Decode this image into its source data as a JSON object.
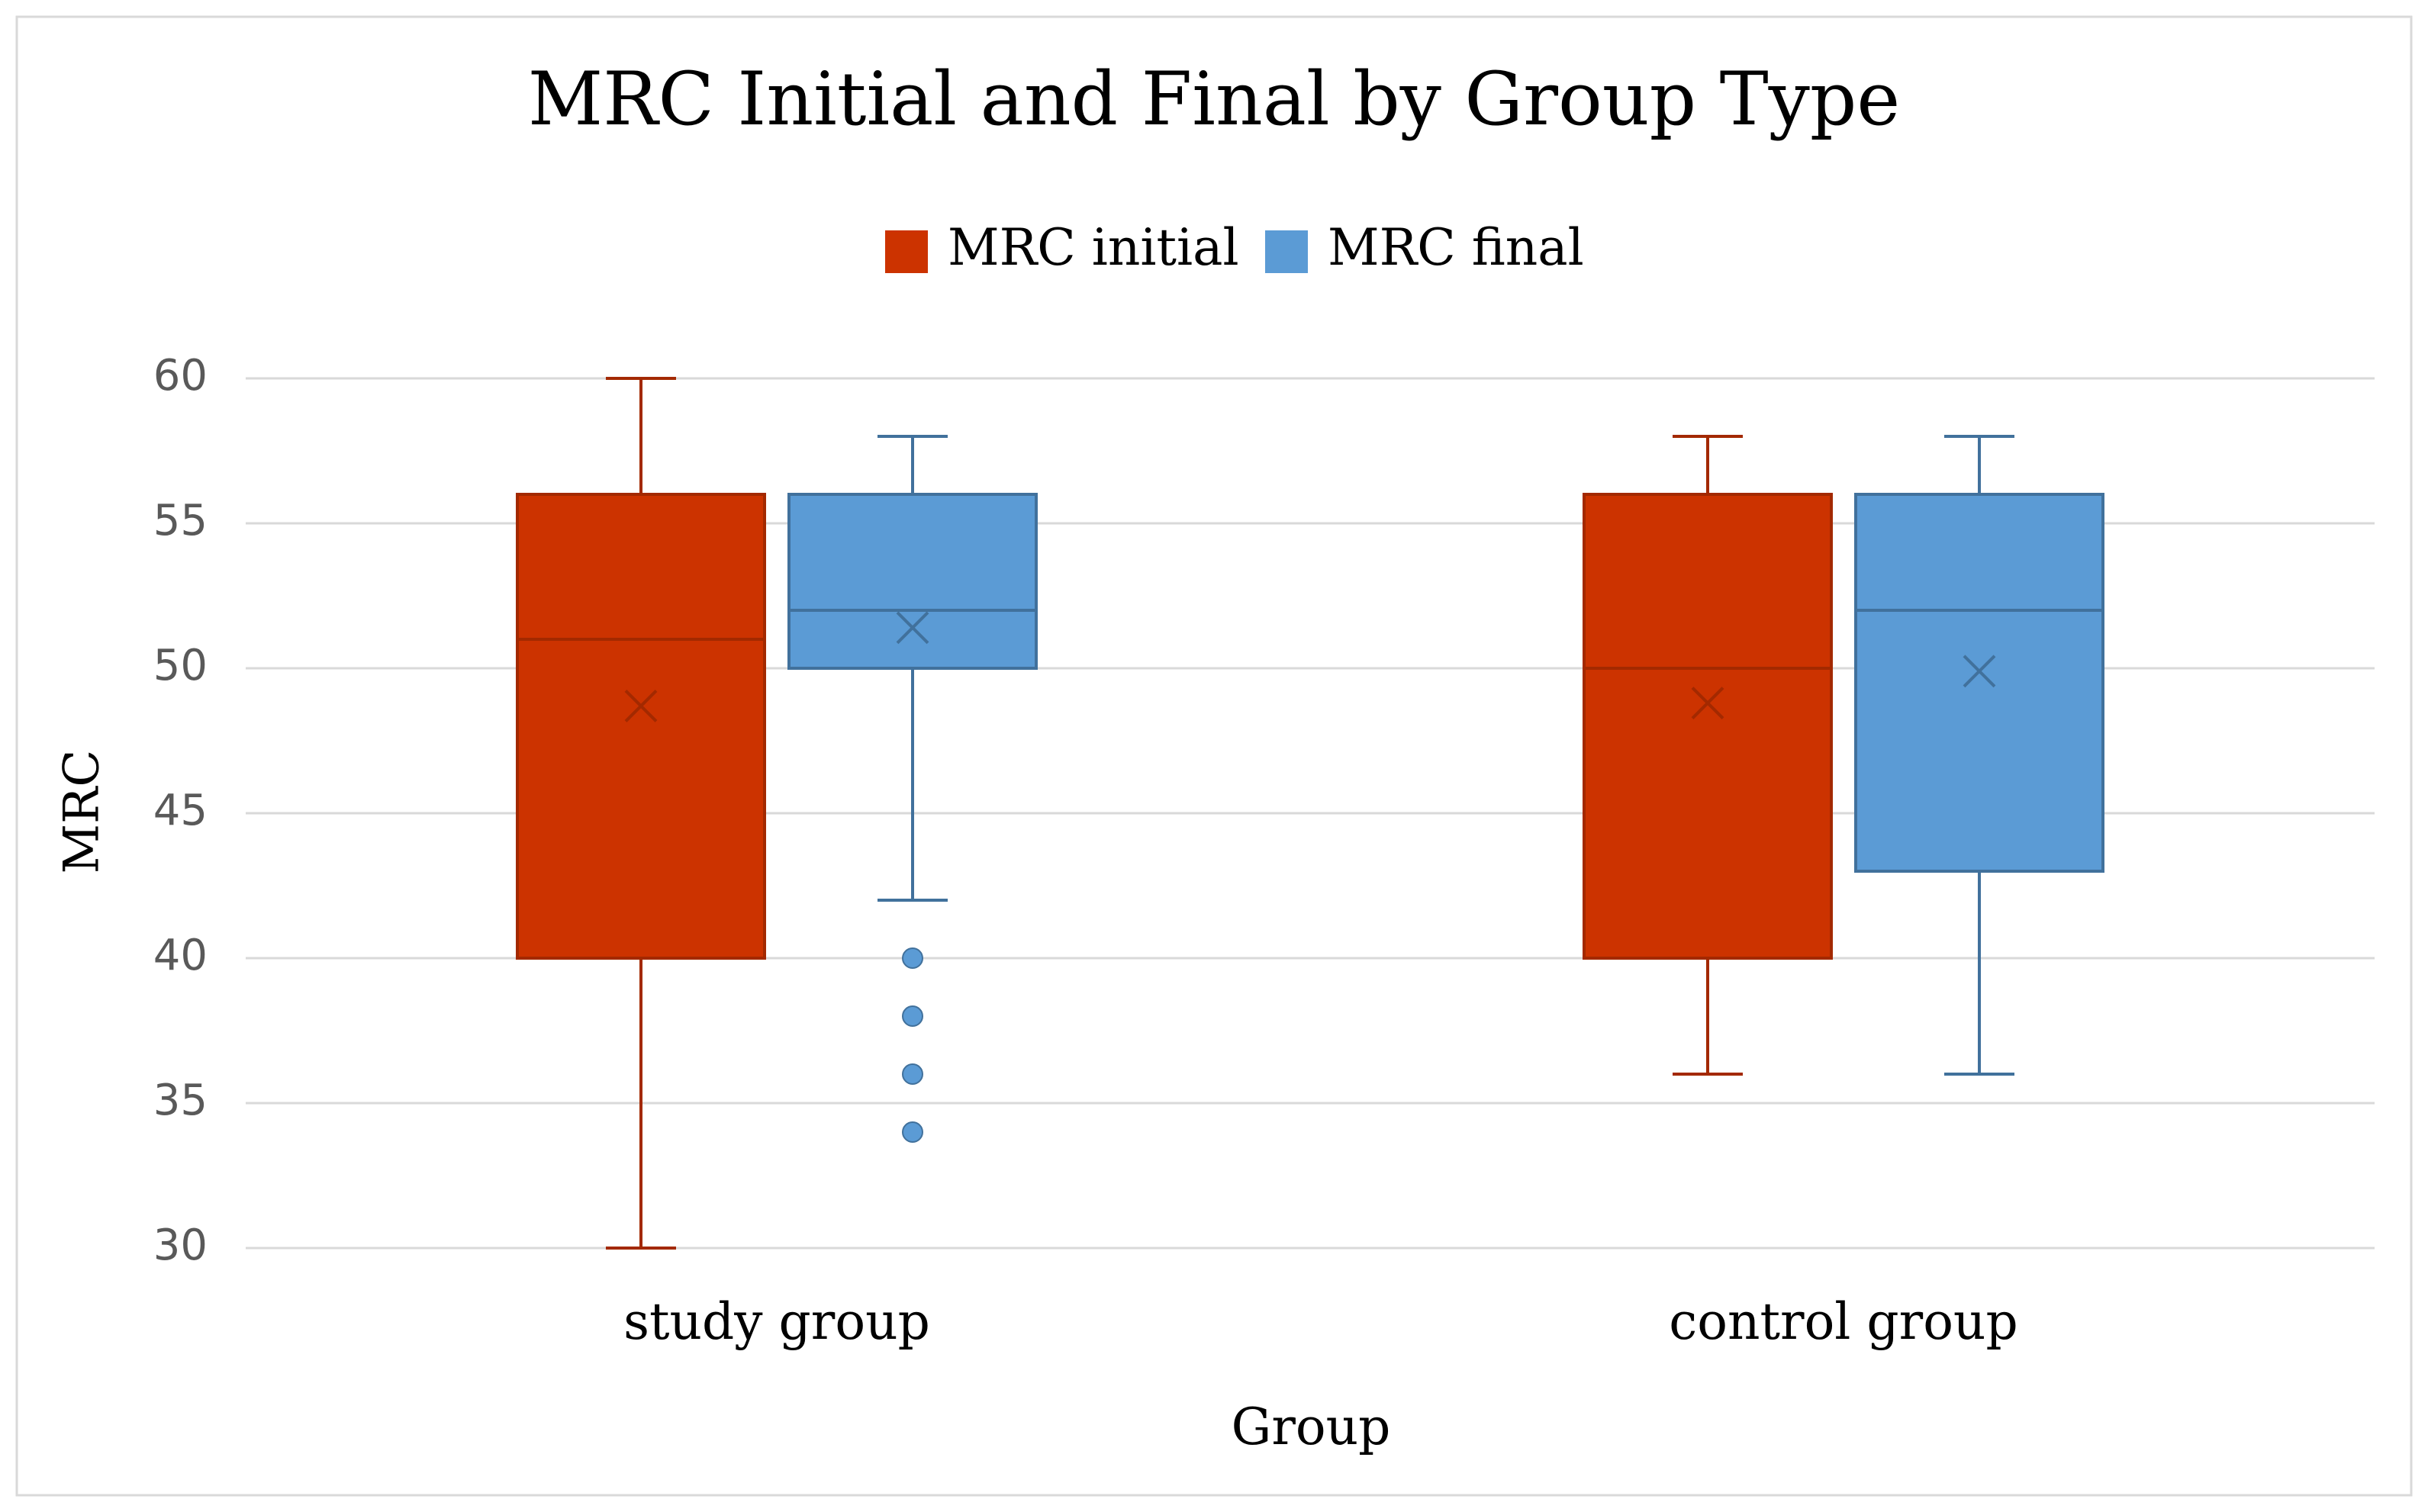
{
  "chart_data": {
    "type": "box",
    "title": "MRC Initial and Final by Group Type",
    "xlabel": "Group",
    "ylabel": "MRC",
    "ylim": [
      30,
      60
    ],
    "ytick_step": 5,
    "grid": true,
    "legend_position": "top-center",
    "categories": [
      "study group",
      "control group"
    ],
    "series": [
      {
        "name": "MRC initial",
        "color": "#CC3300",
        "line_color": "#A32900",
        "boxes": [
          {
            "category": "study group",
            "min": 30,
            "q1": 40,
            "median": 51,
            "q3": 56,
            "max": 60,
            "mean": 48.7,
            "outliers": []
          },
          {
            "category": "control group",
            "min": 36,
            "q1": 40,
            "median": 50,
            "q3": 56,
            "max": 58,
            "mean": 48.8,
            "outliers": []
          }
        ]
      },
      {
        "name": "MRC final",
        "color": "#5B9BD5",
        "line_color": "#41719C",
        "boxes": [
          {
            "category": "study group",
            "min": 42,
            "q1": 50,
            "median": 52,
            "q3": 56,
            "max": 58,
            "mean": 51.4,
            "outliers": [
              40,
              38,
              36,
              34
            ]
          },
          {
            "category": "control group",
            "min": 36,
            "q1": 43,
            "median": 52,
            "q3": 56,
            "max": 58,
            "mean": 49.9,
            "outliers": []
          }
        ]
      }
    ]
  }
}
